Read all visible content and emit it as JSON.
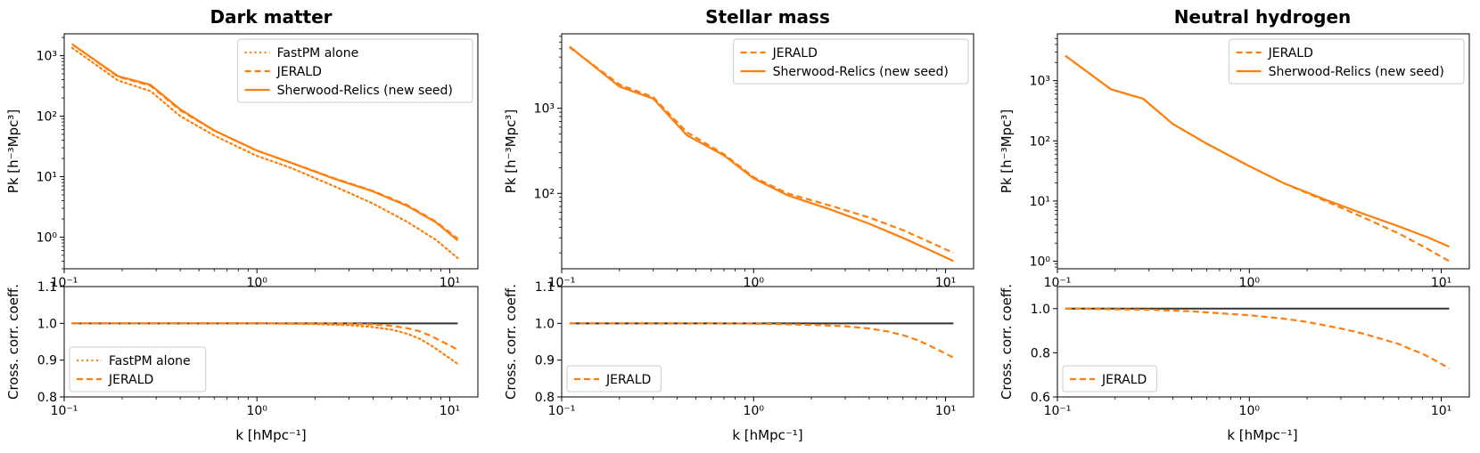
{
  "colors": {
    "orange": "#ff7f0e",
    "reference_line": "#333333",
    "legend_border": "#cccccc"
  },
  "chart_data": [
    {
      "type": "line",
      "title": "Dark matter",
      "top": {
        "xscale": "log",
        "yscale": "log",
        "xlim": [
          0.1,
          14
        ],
        "ylim": [
          0.3,
          2300
        ],
        "xticks": [
          0.1,
          1,
          10
        ],
        "xticklabels": [
          "10⁻¹",
          "10⁰",
          "10¹"
        ],
        "yticks": [
          1,
          10,
          100,
          1000
        ],
        "yticklabels": [
          "10⁰",
          "10¹",
          "10²",
          "10³"
        ],
        "ylabel": "Pk [h⁻³Mpc³]",
        "legend": {
          "loc": "upper right",
          "entries": [
            "FastPM alone",
            "JERALD",
            "Sherwood-Relics (new seed)"
          ]
        },
        "series": [
          {
            "name": "FastPM alone",
            "style": "dotted",
            "x": [
              0.11,
              0.19,
              0.28,
              0.4,
              0.6,
              1.0,
              1.5,
              2.5,
              4,
              6,
              8.5,
              11
            ],
            "y": [
              1350,
              390,
              260,
              100,
              48,
              22,
              14,
              7.0,
              3.6,
              1.8,
              0.9,
              0.45
            ]
          },
          {
            "name": "JERALD",
            "style": "dashed",
            "x": [
              0.11,
              0.19,
              0.28,
              0.4,
              0.6,
              1.0,
              1.5,
              2.5,
              4,
              6,
              8.5,
              11
            ],
            "y": [
              1550,
              450,
              320,
              125,
              58,
              27,
              17,
              9.5,
              5.8,
              3.4,
              1.8,
              0.95
            ]
          },
          {
            "name": "Sherwood-Relics (new seed)",
            "style": "solid",
            "x": [
              0.11,
              0.19,
              0.28,
              0.4,
              0.6,
              1.0,
              1.5,
              2.5,
              4,
              6,
              8.5,
              11
            ],
            "y": [
              1550,
              460,
              330,
              130,
              58,
              27,
              17,
              9.3,
              5.7,
              3.3,
              1.75,
              0.88
            ]
          }
        ]
      },
      "bottom": {
        "xscale": "log",
        "yscale": "linear",
        "xlim": [
          0.1,
          14
        ],
        "ylim": [
          0.8,
          1.1
        ],
        "xticks": [
          0.1,
          1,
          10
        ],
        "xticklabels": [
          "10⁻¹",
          "10⁰",
          "10¹"
        ],
        "yticks": [
          0.8,
          0.9,
          1.0,
          1.1
        ],
        "yticklabels": [
          "0.8",
          "0.9",
          "1.0",
          "1.1"
        ],
        "xlabel": "k [hMpc⁻¹]",
        "ylabel": "Cross. corr. coeff.",
        "reference": 1.0,
        "legend": {
          "loc": "lower left",
          "entries": [
            "FastPM alone",
            "JERALD"
          ]
        },
        "series": [
          {
            "name": "FastPM alone",
            "style": "dotted",
            "x": [
              0.11,
              0.5,
              1,
              2,
              3,
              4,
              5,
              6,
              7,
              8,
              9,
              10,
              11
            ],
            "y": [
              1.0,
              1.0,
              1.0,
              0.998,
              0.995,
              0.99,
              0.983,
              0.972,
              0.958,
              0.94,
              0.922,
              0.905,
              0.89
            ]
          },
          {
            "name": "JERALD",
            "style": "dashed",
            "x": [
              0.11,
              0.5,
              1,
              2,
              3,
              4,
              5,
              6,
              7,
              8,
              9,
              10,
              11
            ],
            "y": [
              1.0,
              1.0,
              1.0,
              1.0,
              0.999,
              0.997,
              0.993,
              0.987,
              0.978,
              0.966,
              0.952,
              0.94,
              0.928
            ]
          }
        ]
      }
    },
    {
      "type": "line",
      "title": "Stellar mass",
      "top": {
        "xscale": "log",
        "yscale": "log",
        "xlim": [
          0.1,
          14
        ],
        "ylim": [
          13,
          7500
        ],
        "xticks": [
          0.1,
          1,
          10
        ],
        "xticklabels": [
          "10⁻¹",
          "10⁰",
          "10¹"
        ],
        "yticks": [
          100,
          1000
        ],
        "yticklabels": [
          "10²",
          "10³"
        ],
        "ylabel": "Pk [h⁻³Mpc³]",
        "legend": {
          "loc": "upper right",
          "entries": [
            "JERALD",
            "Sherwood-Relics (new seed)"
          ]
        },
        "series": [
          {
            "name": "JERALD",
            "style": "dashed",
            "x": [
              0.11,
              0.2,
              0.3,
              0.45,
              0.7,
              1.0,
              1.5,
              2.5,
              4,
              6,
              8.5,
              11
            ],
            "y": [
              5200,
              1900,
              1350,
              520,
              290,
              155,
              100,
              72,
              52,
              37,
              26,
              20
            ]
          },
          {
            "name": "Sherwood-Relics (new seed)",
            "style": "solid",
            "x": [
              0.11,
              0.2,
              0.3,
              0.45,
              0.7,
              1.0,
              1.5,
              2.5,
              4,
              6,
              8.5,
              11
            ],
            "y": [
              5300,
              1800,
              1300,
              480,
              280,
              150,
              95,
              65,
              44,
              30,
              21,
              16
            ]
          }
        ]
      },
      "bottom": {
        "xscale": "log",
        "yscale": "linear",
        "xlim": [
          0.1,
          14
        ],
        "ylim": [
          0.8,
          1.1
        ],
        "xticks": [
          0.1,
          1,
          10
        ],
        "xticklabels": [
          "10⁻¹",
          "10⁰",
          "10¹"
        ],
        "yticks": [
          0.8,
          0.9,
          1.0,
          1.1
        ],
        "yticklabels": [
          "0.8",
          "0.9",
          "1.0",
          "1.1"
        ],
        "xlabel": "k [hMpc⁻¹]",
        "ylabel": "Cross. corr. coeff.",
        "reference": 1.0,
        "legend": {
          "loc": "lower left",
          "entries": [
            "JERALD"
          ]
        },
        "series": [
          {
            "name": "JERALD",
            "style": "dashed",
            "x": [
              0.11,
              0.5,
              1,
              2,
              3,
              4,
              5,
              6,
              7,
              8,
              9,
              10,
              11
            ],
            "y": [
              1.0,
              1.0,
              0.999,
              0.996,
              0.992,
              0.986,
              0.978,
              0.968,
              0.956,
              0.943,
              0.93,
              0.918,
              0.907
            ]
          }
        ]
      }
    },
    {
      "type": "line",
      "title": "Neutral hydrogen",
      "top": {
        "xscale": "log",
        "yscale": "log",
        "xlim": [
          0.1,
          14
        ],
        "ylim": [
          0.75,
          6000
        ],
        "xticks": [
          0.1,
          1,
          10
        ],
        "xticklabels": [
          "10⁻¹",
          "10⁰",
          "10¹"
        ],
        "yticks": [
          1,
          10,
          100,
          1000
        ],
        "yticklabels": [
          "10⁰",
          "10¹",
          "10²",
          "10³"
        ],
        "ylabel": "Pk [h⁻³Mpc³]",
        "legend": {
          "loc": "upper right",
          "entries": [
            "JERALD",
            "Sherwood-Relics (new seed)"
          ]
        },
        "series": [
          {
            "name": "JERALD",
            "style": "dashed",
            "x": [
              0.11,
              0.19,
              0.28,
              0.4,
              0.6,
              1.0,
              1.5,
              2.5,
              4,
              6,
              8.5,
              11
            ],
            "y": [
              2600,
              720,
              500,
              190,
              90,
              38,
              20,
              10,
              5.2,
              2.9,
              1.6,
              1.0
            ]
          },
          {
            "name": "Sherwood-Relics (new seed)",
            "style": "solid",
            "x": [
              0.11,
              0.19,
              0.28,
              0.4,
              0.6,
              1.0,
              1.5,
              2.5,
              4,
              6,
              8.5,
              11
            ],
            "y": [
              2600,
              720,
              500,
              190,
              90,
              38,
              20,
              10.5,
              6.0,
              3.8,
              2.5,
              1.75
            ]
          }
        ]
      },
      "bottom": {
        "xscale": "log",
        "yscale": "linear",
        "xlim": [
          0.1,
          14
        ],
        "ylim": [
          0.6,
          1.1
        ],
        "xticks": [
          0.1,
          1,
          10
        ],
        "xticklabels": [
          "10⁻¹",
          "10⁰",
          "10¹"
        ],
        "yticks": [
          0.6,
          0.8,
          1.0
        ],
        "yticklabels": [
          "0.6",
          "0.8",
          "1.0"
        ],
        "xlabel": "k [hMpc⁻¹]",
        "ylabel": "Cross. corr. coeff.",
        "reference": 1.0,
        "legend": {
          "loc": "lower left",
          "entries": [
            "JERALD"
          ]
        },
        "series": [
          {
            "name": "JERALD",
            "style": "dashed",
            "x": [
              0.11,
              0.3,
              0.5,
              1,
              1.5,
              2,
              3,
              4,
              5,
              6,
              7,
              8,
              9,
              10,
              11
            ],
            "y": [
              1.0,
              0.995,
              0.988,
              0.97,
              0.955,
              0.94,
              0.91,
              0.885,
              0.86,
              0.84,
              0.815,
              0.795,
              0.772,
              0.75,
              0.73
            ]
          }
        ]
      }
    }
  ]
}
